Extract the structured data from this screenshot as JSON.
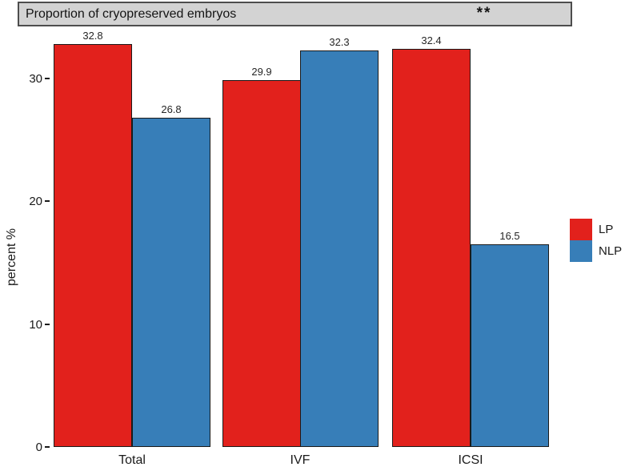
{
  "chart_data": {
    "type": "bar",
    "title": "Proportion of cryopreserved embryos",
    "significance": "**",
    "categories": [
      "Total",
      "IVF",
      "ICSI"
    ],
    "series": [
      {
        "name": "LP",
        "color": "#e2211c",
        "values": [
          32.8,
          29.9,
          32.4
        ]
      },
      {
        "name": "NLP",
        "color": "#377eb8",
        "values": [
          26.8,
          32.3,
          16.5
        ]
      }
    ],
    "xlabel": "",
    "ylabel": "percent %",
    "yticks": [
      0,
      10,
      20,
      30
    ],
    "ylim": [
      0,
      34.5
    ],
    "grid": false,
    "value_labels": true,
    "legend_position": "right"
  },
  "legend": {
    "items": [
      {
        "label": "LP",
        "color": "#e2211c"
      },
      {
        "label": "NLP",
        "color": "#377eb8"
      }
    ]
  },
  "title_bar": {
    "background": "#d3d3d3",
    "border_color": "#4d4d4d"
  }
}
